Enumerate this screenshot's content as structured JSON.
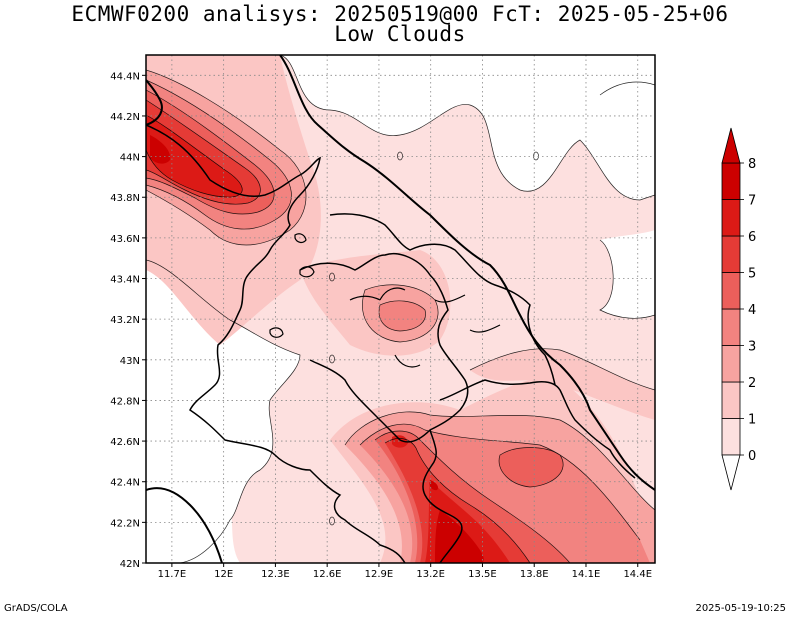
{
  "title": {
    "line1": "ECMWF0200 analisys: 20250519@00 FcT: 2025-05-25+06",
    "line2": "Low Clouds"
  },
  "map": {
    "lon_labels": [
      "11.7E",
      "12E",
      "12.3E",
      "12.6E",
      "12.9E",
      "13.2E",
      "13.5E",
      "13.8E",
      "14.1E",
      "14.4E"
    ],
    "lat_labels": [
      "44.4N",
      "44.2N",
      "44N",
      "43.8N",
      "43.6N",
      "43.4N",
      "43.2N",
      "43N",
      "42.8N",
      "42.6N",
      "42.4N",
      "42.2N",
      "42N"
    ],
    "lon_range": [
      11.55,
      14.5
    ],
    "lat_range": [
      42.0,
      44.5
    ]
  },
  "colorbar": {
    "labels": [
      "0",
      "1",
      "2",
      "3",
      "4",
      "5",
      "6",
      "7",
      "8"
    ],
    "colors": [
      "#ffffff",
      "#fde0df",
      "#fbc6c4",
      "#f7a3a0",
      "#f28380",
      "#ec5f5b",
      "#e53b36",
      "#dc1a16",
      "#cc0000"
    ]
  },
  "footer": {
    "left": "GrADS/COLA",
    "right": "2025-05-19-10:25"
  }
}
